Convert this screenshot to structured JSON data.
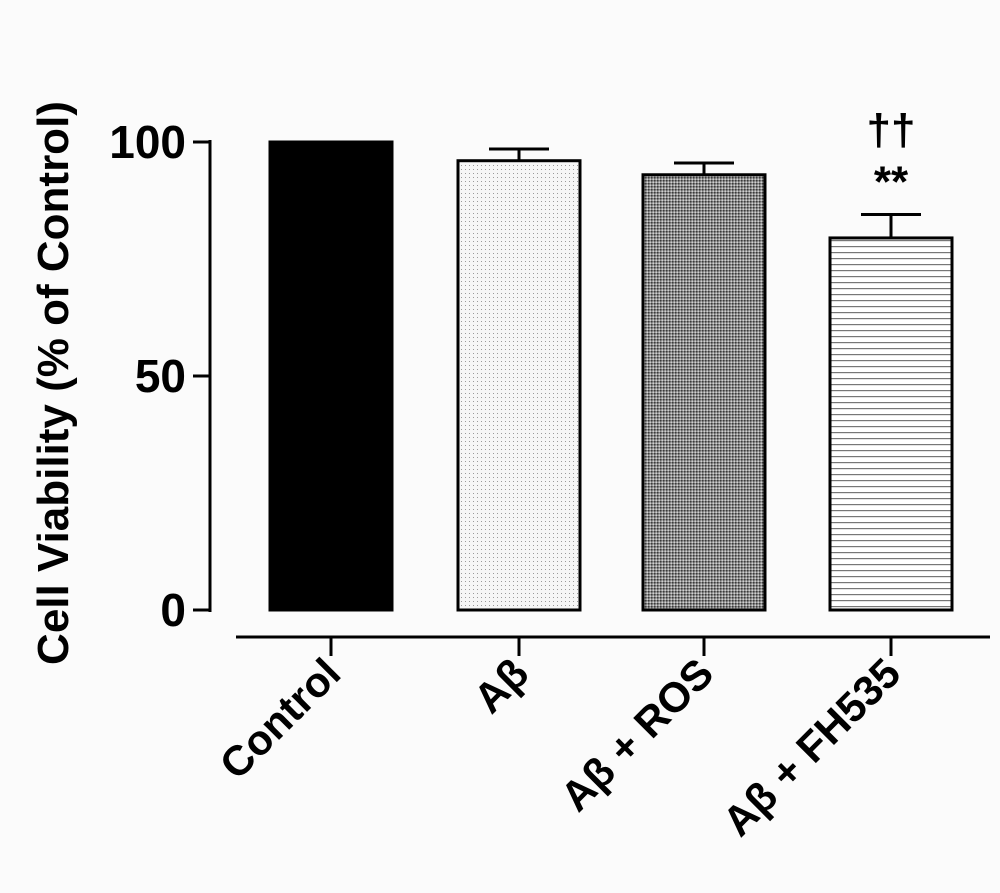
{
  "chart_data": {
    "type": "bar",
    "title": "",
    "xlabel": "",
    "ylabel": "Cell Viability (% of Control)",
    "ylim": [
      0,
      100
    ],
    "yticks": [
      "0",
      "50",
      "100"
    ],
    "categories": [
      "Control",
      "Aβ",
      "Aβ + ROS",
      "Aβ + FH535"
    ],
    "values": [
      100,
      96,
      93,
      79.5
    ],
    "errors": [
      0,
      2.5,
      2.5,
      5
    ],
    "fills": [
      "solid-black",
      "light-dots",
      "dense-dots",
      "horizontal-lines"
    ],
    "annotations": [
      {
        "category": "Aβ + FH535",
        "stars": "**",
        "daggers": "††"
      }
    ],
    "grid": false,
    "legend": "none"
  }
}
